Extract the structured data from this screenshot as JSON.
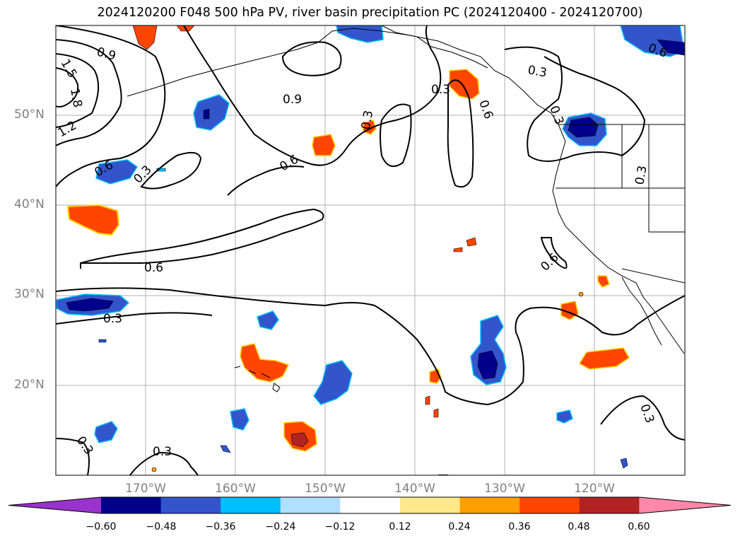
{
  "title": "2024120200 F048 500 hPa PV, river basin precipitation PC (2024120400 - 2024120700)",
  "map": {
    "lat_labels": [
      {
        "text": "50°N",
        "lat": 50
      },
      {
        "text": "40°N",
        "lat": 40
      },
      {
        "text": "30°N",
        "lat": 30
      },
      {
        "text": "20°N",
        "lat": 20
      }
    ],
    "lon_labels": [
      {
        "text": "170°W",
        "lon": -170
      },
      {
        "text": "160°W",
        "lon": -160
      },
      {
        "text": "150°W",
        "lon": -150
      },
      {
        "text": "140°W",
        "lon": -140
      },
      {
        "text": "130°W",
        "lon": -130
      },
      {
        "text": "120°W",
        "lon": -120
      }
    ],
    "contour_labels": [
      "0.9",
      "1.5",
      "1.8",
      "1.2",
      "0.6",
      "0.3",
      "0.9",
      "0.3",
      "0.6",
      "0.6",
      "0.3",
      "0.3",
      "0.6",
      "0.3",
      "0.6",
      "0.3",
      "0.6",
      "0.3",
      "0.3",
      "0.3",
      "0.3"
    ]
  },
  "colorbar": {
    "ticks": [
      "−0.60",
      "−0.48",
      "−0.36",
      "−0.24",
      "−0.12",
      "0.12",
      "0.24",
      "0.36",
      "0.48",
      "0.60"
    ],
    "colors": [
      "#9933cc",
      "#00008b",
      "#3355cc",
      "#00bfff",
      "#b0e0ff",
      "#ffffff",
      "#ffe98c",
      "#ffa000",
      "#ff4500",
      "#b22222",
      "#ff88aa"
    ]
  }
}
